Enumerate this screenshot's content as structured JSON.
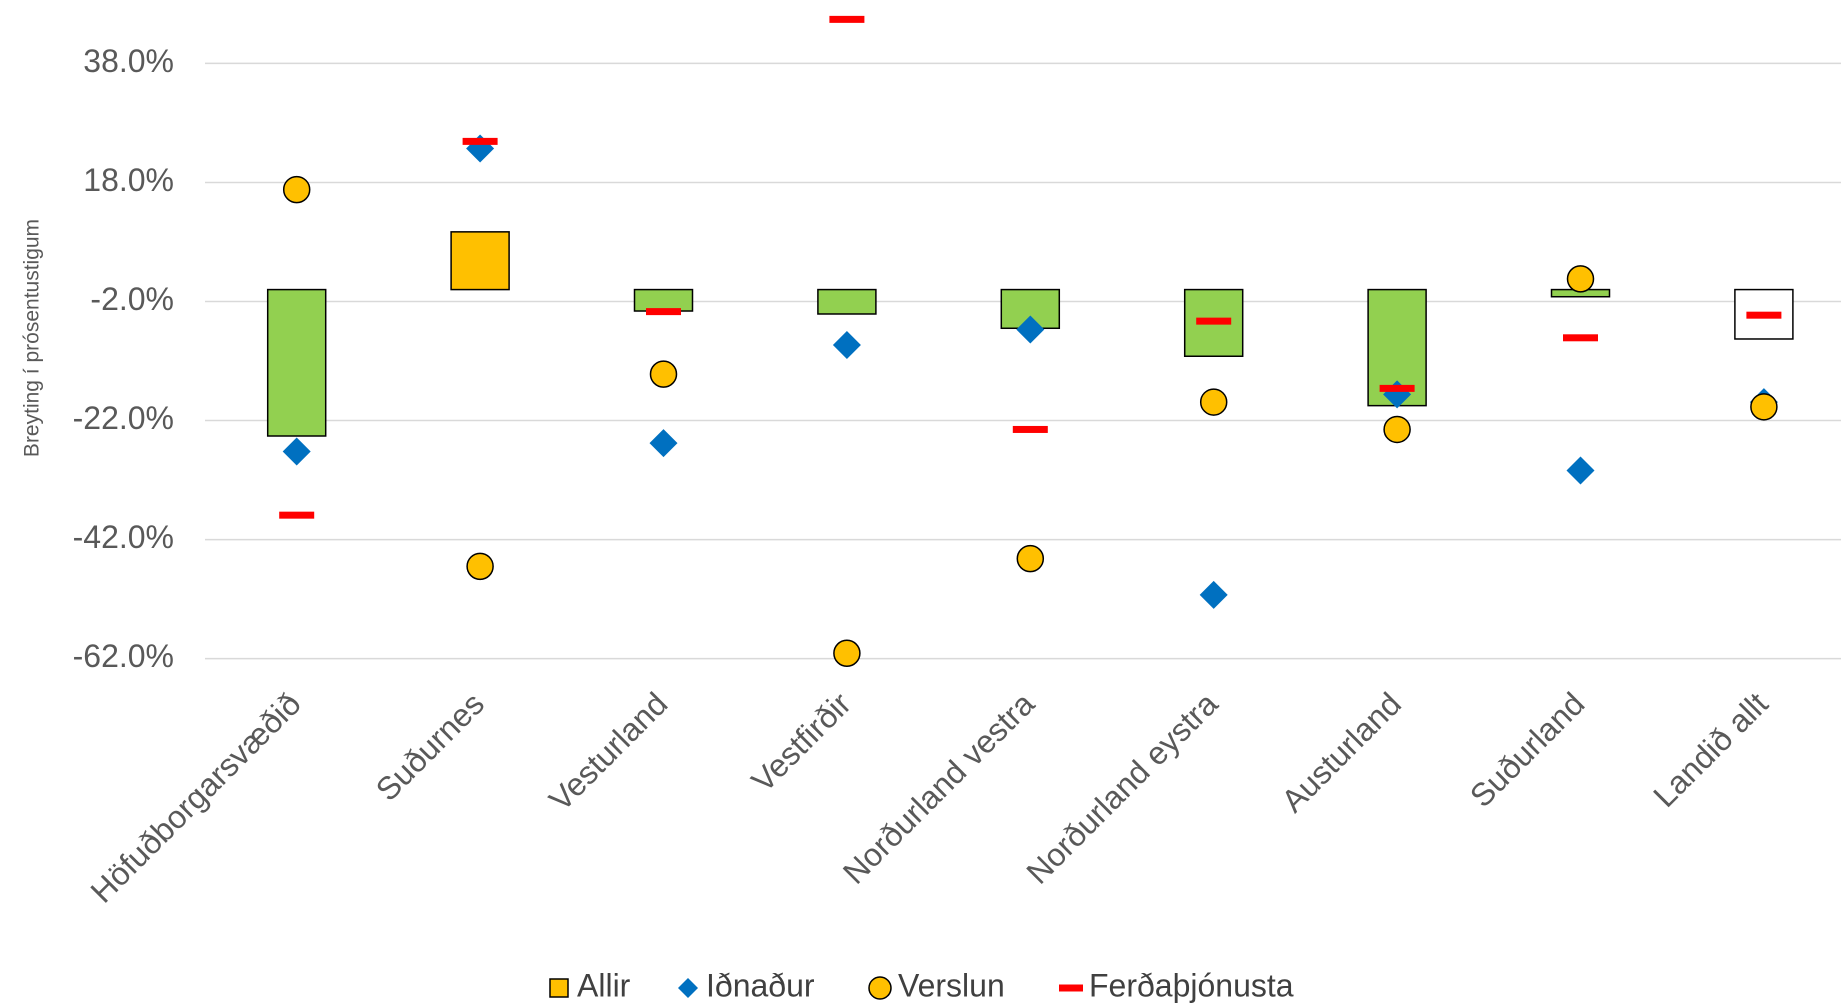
{
  "chart_data": {
    "type": "bar_scatter",
    "y_label": "Breyting í prósentustigum",
    "categories": [
      "Höfuðborgarsvæðið",
      "Suðurnes",
      "Vesturland",
      "Vestfirðir",
      "Norðurland vestra",
      "Norðurland eystra",
      "Austurland",
      "Suðurland",
      "Landið allt"
    ],
    "series": [
      {
        "name": "Allir",
        "marker": "bar",
        "color": "#ffc000",
        "colors": [
          "#92d050",
          "#ffc000",
          "#92d050",
          "#92d050",
          "#92d050",
          "#92d050",
          "#92d050",
          "#92d050",
          "#ffffff"
        ],
        "values": [
          -24.6,
          9.7,
          -3.6,
          -4.1,
          -6.5,
          -11.2,
          -19.5,
          -1.2,
          -8.3
        ]
      },
      {
        "name": "Iðnaður",
        "marker": "diamond",
        "color": "#0070c0",
        "values": [
          -27.2,
          23.7,
          -25.8,
          -9.3,
          -6.7,
          -51.3,
          -17.6,
          -30.4,
          -18.9
        ]
      },
      {
        "name": "Verslun",
        "marker": "circle",
        "color": "#ffc000",
        "values": [
          16.8,
          -46.5,
          -14.2,
          -61.1,
          -45.2,
          -18.9,
          -23.5,
          1.8,
          -19.7
        ]
      },
      {
        "name": "Ferðaþjónusta",
        "marker": "dash",
        "color": "#ff0000",
        "values": [
          -37.9,
          24.9,
          -3.7,
          45.4,
          -23.5,
          -5.3,
          -16.6,
          -8.1,
          -4.3
        ]
      }
    ],
    "ylim": [
      -62,
      48
    ],
    "yticks": [
      {
        "value": -62,
        "label": "-62.0%"
      },
      {
        "value": -42,
        "label": "-42.0%"
      },
      {
        "value": -22,
        "label": "-22.0%"
      },
      {
        "value": -2,
        "label": "-2.0%"
      },
      {
        "value": 18,
        "label": "18.0%"
      },
      {
        "value": 38,
        "label": "38.0%"
      }
    ],
    "grid": true,
    "legend": "bottom"
  }
}
